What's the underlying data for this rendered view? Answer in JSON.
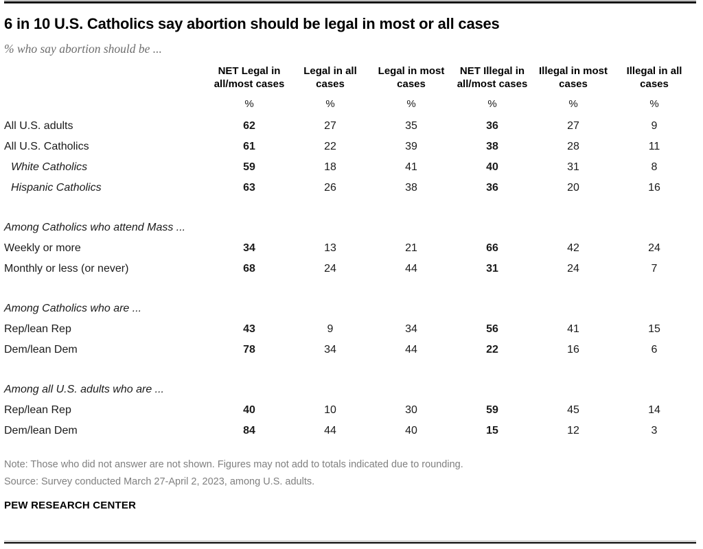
{
  "header": {
    "title": "6 in 10 U.S. Catholics say abortion should be legal in most or all cases",
    "subtitle": "% who say abortion should be ..."
  },
  "table": {
    "unit": "%",
    "columns": [
      "NET Legal in all/most cases",
      "Legal in all cases",
      "Legal in most cases",
      "NET Illegal in all/most cases",
      "Illegal in most cases",
      "Illegal in all cases"
    ],
    "rows": [
      {
        "type": "data",
        "label": "All U.S. adults",
        "values": [
          62,
          27,
          35,
          36,
          27,
          9
        ]
      },
      {
        "type": "data",
        "label": "All U.S. Catholics",
        "values": [
          61,
          22,
          39,
          38,
          28,
          11
        ]
      },
      {
        "type": "data",
        "label": "White Catholics",
        "values": [
          59,
          18,
          41,
          40,
          31,
          8
        ]
      },
      {
        "type": "data",
        "label": "Hispanic Catholics",
        "values": [
          63,
          26,
          38,
          36,
          20,
          16
        ]
      },
      {
        "type": "section",
        "label": "Among Catholics who attend Mass ..."
      },
      {
        "type": "data",
        "label": "Weekly or more",
        "values": [
          34,
          13,
          21,
          66,
          42,
          24
        ]
      },
      {
        "type": "data",
        "label": "Monthly or less (or never)",
        "values": [
          68,
          24,
          44,
          31,
          24,
          7
        ]
      },
      {
        "type": "section",
        "label": "Among Catholics who are ..."
      },
      {
        "type": "data",
        "label": "Rep/lean Rep",
        "values": [
          43,
          9,
          34,
          56,
          41,
          15
        ]
      },
      {
        "type": "data",
        "label": "Dem/lean Dem",
        "values": [
          78,
          34,
          44,
          22,
          16,
          6
        ]
      },
      {
        "type": "section",
        "label": "Among all U.S. adults who are ..."
      },
      {
        "type": "data",
        "label": "Rep/lean Rep",
        "values": [
          40,
          10,
          30,
          59,
          45,
          14
        ]
      },
      {
        "type": "data",
        "label": "Dem/lean Dem",
        "values": [
          84,
          44,
          40,
          15,
          12,
          3
        ]
      }
    ]
  },
  "footer": {
    "note": "Note: Those who did not answer are not shown. Figures may not add to totals indicated due to rounding.",
    "source": "Source: Survey conducted March 27-April 2, 2023, among U.S. adults.",
    "brand": "PEW RESEARCH CENTER"
  },
  "chart_data": {
    "type": "table",
    "title": "6 in 10 U.S. Catholics say abortion should be legal in most or all cases",
    "subtitle": "% who say abortion should be ...",
    "unit": "percent",
    "columns": [
      "NET Legal in all/most cases",
      "Legal in all cases",
      "Legal in most cases",
      "NET Illegal in all/most cases",
      "Illegal in most cases",
      "Illegal in all cases"
    ],
    "bold_columns": [
      "NET Legal in all/most cases",
      "NET Illegal in all/most cases"
    ],
    "groups": [
      {
        "group": null,
        "rows": [
          {
            "label": "All U.S. adults",
            "values": [
              62,
              27,
              35,
              36,
              27,
              9
            ]
          },
          {
            "label": "All U.S. Catholics",
            "values": [
              61,
              22,
              39,
              38,
              28,
              11
            ]
          },
          {
            "label": "White Catholics",
            "values": [
              59,
              18,
              41,
              40,
              31,
              8
            ]
          },
          {
            "label": "Hispanic Catholics",
            "values": [
              63,
              26,
              38,
              36,
              20,
              16
            ]
          }
        ]
      },
      {
        "group": "Among Catholics who attend Mass ...",
        "rows": [
          {
            "label": "Weekly or more",
            "values": [
              34,
              13,
              21,
              66,
              42,
              24
            ]
          },
          {
            "label": "Monthly or less (or never)",
            "values": [
              68,
              24,
              44,
              31,
              24,
              7
            ]
          }
        ]
      },
      {
        "group": "Among Catholics who are ...",
        "rows": [
          {
            "label": "Rep/lean Rep",
            "values": [
              43,
              9,
              34,
              56,
              41,
              15
            ]
          },
          {
            "label": "Dem/lean Dem",
            "values": [
              78,
              34,
              44,
              22,
              16,
              6
            ]
          }
        ]
      },
      {
        "group": "Among all U.S. adults who are ...",
        "rows": [
          {
            "label": "Rep/lean Rep",
            "values": [
              40,
              10,
              30,
              59,
              45,
              14
            ]
          },
          {
            "label": "Dem/lean Dem",
            "values": [
              84,
              44,
              40,
              15,
              12,
              3
            ]
          }
        ]
      }
    ],
    "note": "Those who did not answer are not shown. Figures may not add to totals indicated due to rounding.",
    "source": "Survey conducted March 27-April 2, 2023, among U.S. adults."
  }
}
